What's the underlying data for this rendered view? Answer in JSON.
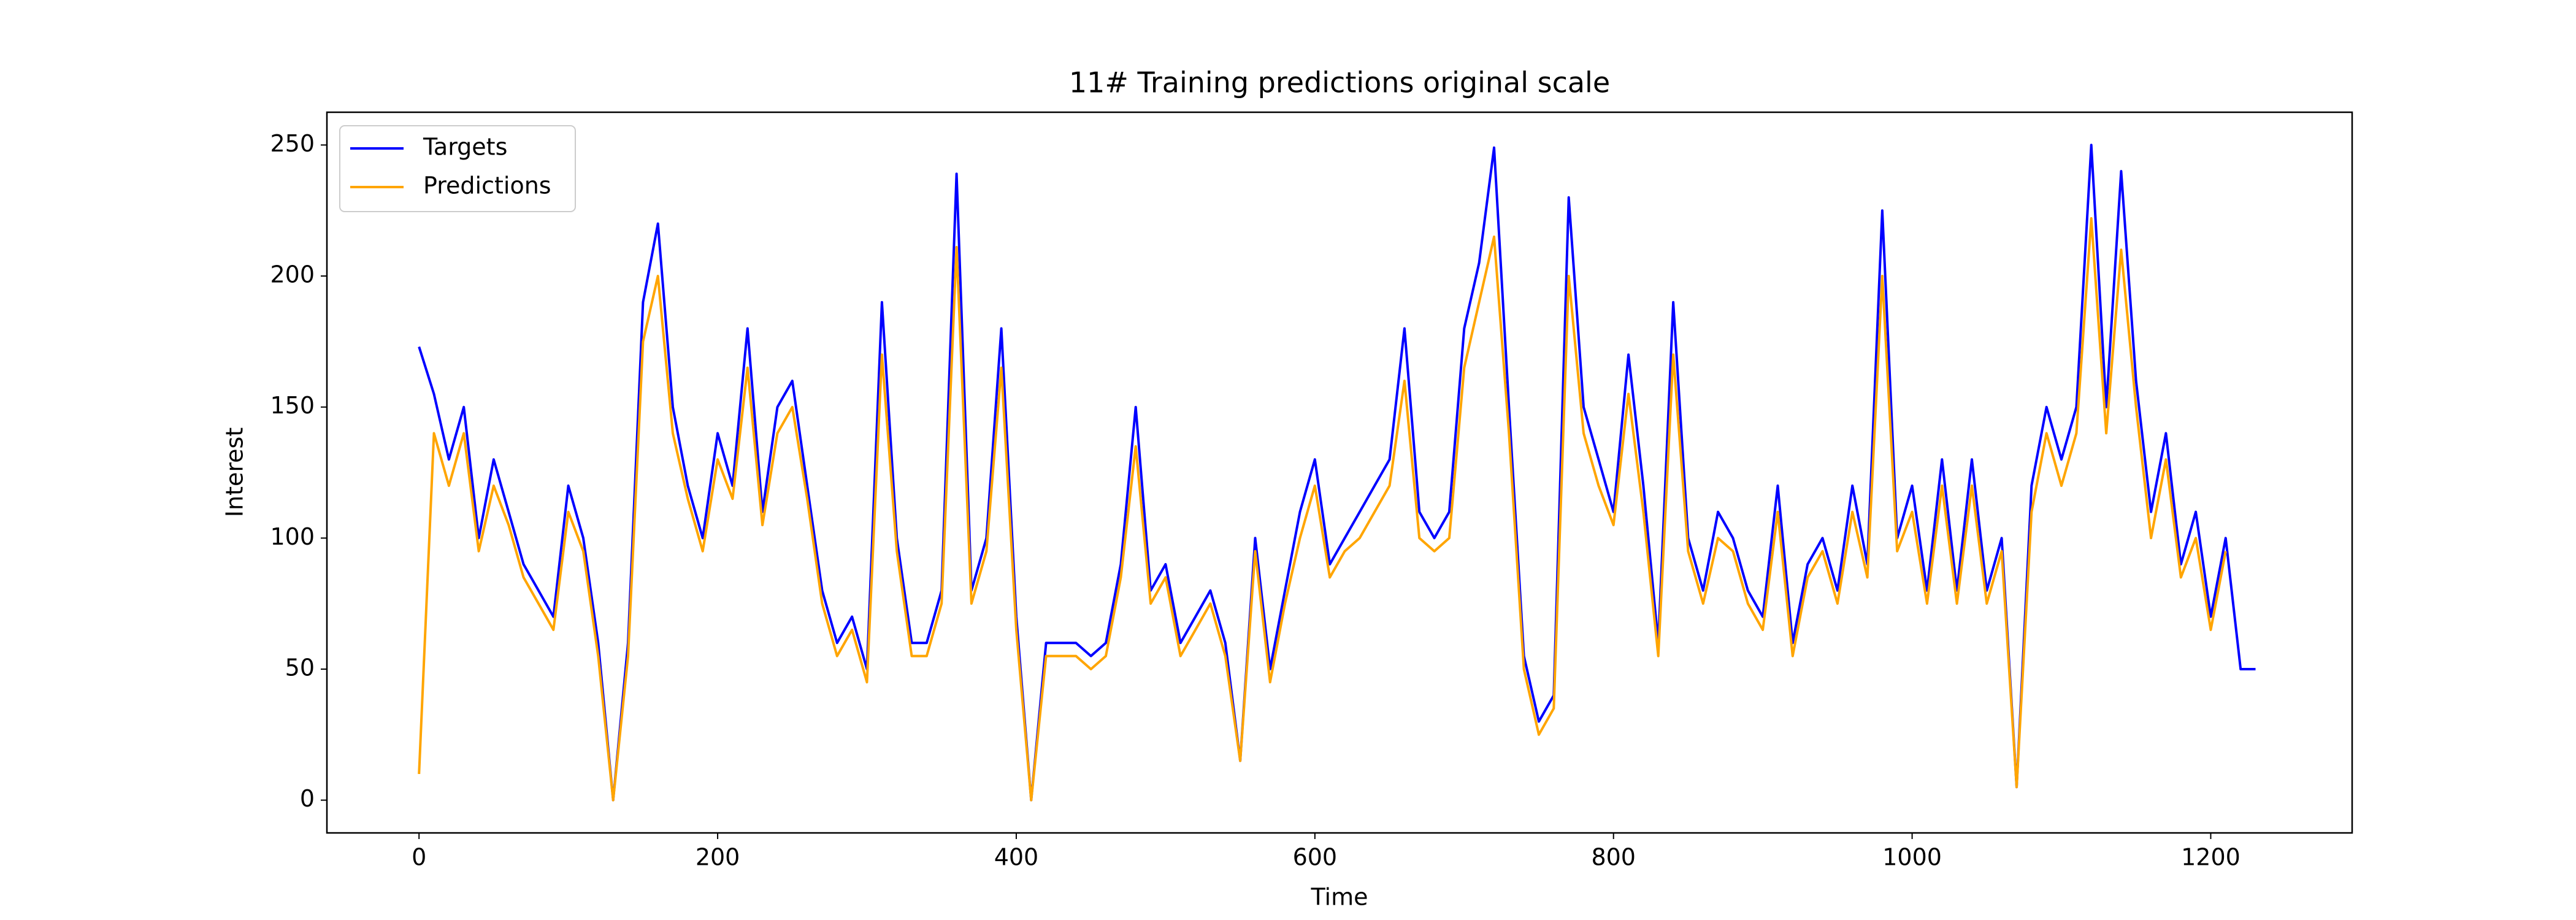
{
  "chart_data": {
    "type": "line",
    "title": "11# Training predictions original scale",
    "x_label": "Time",
    "y_label": "Interest",
    "x": [
      0,
      10,
      20,
      30,
      40,
      50,
      60,
      70,
      80,
      90,
      100,
      110,
      120,
      130,
      140,
      150,
      160,
      170,
      180,
      190,
      200,
      210,
      220,
      230,
      240,
      250,
      260,
      270,
      280,
      290,
      300,
      310,
      320,
      330,
      340,
      350,
      360,
      370,
      380,
      390,
      400,
      410,
      420,
      430,
      440,
      450,
      460,
      470,
      480,
      490,
      500,
      510,
      520,
      530,
      540,
      550,
      560,
      570,
      580,
      590,
      600,
      610,
      620,
      630,
      640,
      650,
      660,
      670,
      680,
      690,
      700,
      710,
      720,
      730,
      740,
      750,
      760,
      770,
      780,
      790,
      800,
      810,
      820,
      830,
      840,
      850,
      860,
      870,
      880,
      890,
      900,
      910,
      920,
      930,
      940,
      950,
      960,
      970,
      980,
      990,
      1000,
      1010,
      1020,
      1030,
      1040,
      1050,
      1060,
      1070,
      1080,
      1090,
      1100,
      1110,
      1120,
      1130,
      1140,
      1150,
      1160,
      1170,
      1180,
      1190,
      1200,
      1210,
      1220,
      1230
    ],
    "series": [
      {
        "name": "Targets",
        "color": "#0000ff",
        "values": [
          173,
          155,
          130,
          150,
          100,
          130,
          110,
          90,
          80,
          70,
          120,
          100,
          60,
          0,
          60,
          190,
          220,
          150,
          120,
          100,
          140,
          120,
          180,
          110,
          150,
          160,
          120,
          80,
          60,
          70,
          50,
          190,
          100,
          60,
          60,
          80,
          239,
          80,
          100,
          180,
          70,
          0,
          60,
          60,
          60,
          55,
          60,
          90,
          150,
          80,
          90,
          60,
          70,
          80,
          60,
          15,
          100,
          50,
          80,
          110,
          130,
          90,
          100,
          110,
          120,
          130,
          180,
          110,
          100,
          110,
          180,
          205,
          249,
          150,
          55,
          30,
          40,
          230,
          150,
          130,
          110,
          170,
          120,
          60,
          190,
          100,
          80,
          110,
          100,
          80,
          70,
          120,
          60,
          90,
          100,
          80,
          120,
          90,
          225,
          100,
          120,
          80,
          130,
          80,
          130,
          80,
          100,
          5,
          120,
          150,
          130,
          150,
          250,
          150,
          240,
          160,
          110,
          140,
          90,
          110,
          70,
          100,
          50,
          50
        ]
      },
      {
        "name": "Predictions",
        "color": "#ffa500",
        "values": [
          10,
          140,
          120,
          140,
          95,
          120,
          105,
          85,
          75,
          65,
          110,
          95,
          55,
          0,
          55,
          175,
          200,
          140,
          115,
          95,
          130,
          115,
          165,
          105,
          140,
          150,
          115,
          75,
          55,
          65,
          45,
          170,
          95,
          55,
          55,
          75,
          211,
          75,
          95,
          165,
          65,
          0,
          55,
          55,
          55,
          50,
          55,
          85,
          135,
          75,
          85,
          55,
          65,
          75,
          55,
          15,
          95,
          45,
          75,
          100,
          120,
          85,
          95,
          100,
          110,
          120,
          160,
          100,
          95,
          100,
          165,
          190,
          215,
          140,
          50,
          25,
          35,
          200,
          140,
          120,
          105,
          155,
          110,
          55,
          170,
          95,
          75,
          100,
          95,
          75,
          65,
          110,
          55,
          85,
          95,
          75,
          110,
          85,
          200,
          95,
          110,
          75,
          120,
          75,
          120,
          75,
          95,
          5,
          110,
          140,
          120,
          140,
          222,
          140,
          210,
          150,
          100,
          130,
          85,
          100,
          65,
          95,
          null,
          null
        ]
      }
    ],
    "xlim": [
      -61.7,
      1294.7
    ],
    "ylim": [
      -12.5,
      262.5
    ],
    "xticks": [
      0,
      200,
      400,
      600,
      800,
      1000,
      1200
    ],
    "yticks": [
      0,
      50,
      100,
      150,
      200,
      250
    ],
    "legend": "upper left",
    "grid": false
  }
}
